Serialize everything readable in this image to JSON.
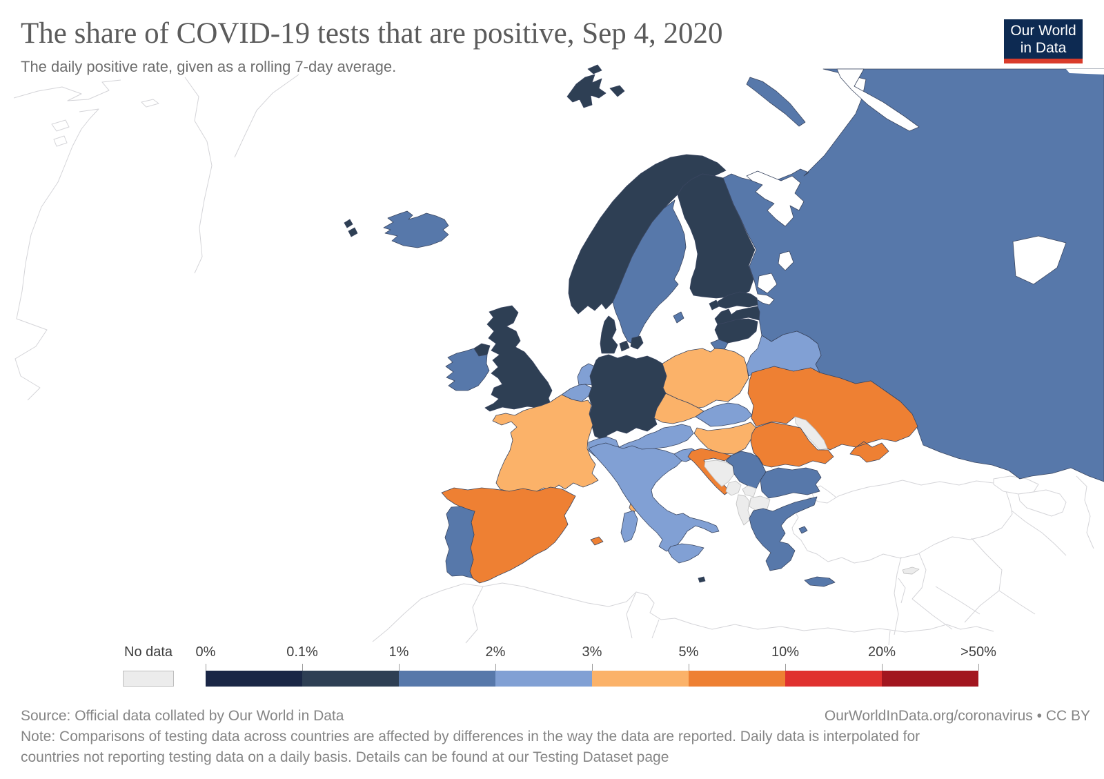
{
  "title": "The share of COVID-19 tests that are positive, Sep 4, 2020",
  "subtitle": "The daily positive rate, given as a rolling 7-day average.",
  "logo": {
    "line1": "Our World",
    "line2": "in Data",
    "bg_color": "#0d2a52",
    "bar_color": "#d93c2b"
  },
  "legend": {
    "no_data_label": "No data",
    "ticks": [
      "0%",
      "0.1%",
      "1%",
      "2%",
      "3%",
      "5%",
      "10%",
      "20%",
      ">50%"
    ],
    "bucket_order": [
      "0-0.1%",
      "0.1-1%",
      "1-2%",
      "2-3%",
      "3-5%",
      "5-10%",
      "10-20%",
      ">20%"
    ],
    "bucket_colors": {
      "0-0.1%": "#1a2746",
      "0.1-1%": "#2e3f54",
      "1-2%": "#5778aa",
      "2-3%": "#81a0d4",
      "3-5%": "#fbb269",
      "5-10%": "#ee8033",
      "10-20%": "#e0312f",
      ">20%": "#a2161f"
    },
    "no_data_color": "#ececec"
  },
  "footer": {
    "source": "Source: Official data collated by Our World in Data",
    "credit": "OurWorldInData.org/coronavirus • CC BY",
    "note_lines": [
      "Note: Comparisons of testing data across countries are affected by differences in the way the data are reported. Daily data is interpolated for",
      "countries not reporting testing data on a daily basis. Details can be found at our Testing Dataset page"
    ]
  },
  "chart_data": {
    "type": "heatmap",
    "subtype": "choropleth-map",
    "title": "The share of COVID-19 tests that are positive",
    "date": "Sep 4, 2020",
    "unit": "daily positive rate, rolling 7-day average",
    "legend_buckets": [
      "0-0.1%",
      "0.1-1%",
      "1-2%",
      "2-3%",
      "3-5%",
      "5-10%",
      "10-20%",
      ">20%"
    ],
    "countries": {
      "Iceland": "1-2%",
      "Norway": "0.1-1%",
      "Sweden": "1-2%",
      "Finland": "0.1-1%",
      "Denmark": "0.1-1%",
      "Faroe Islands": "0.1-1%",
      "Svalbard": "0.1-1%",
      "United Kingdom": "0.1-1%",
      "Ireland": "1-2%",
      "Netherlands": "2-3%",
      "Belgium": "2-3%",
      "Luxembourg": "2-3%",
      "Germany": "0.1-1%",
      "France": "3-5%",
      "Spain": "5-10%",
      "Portugal": "1-2%",
      "Italy": "2-3%",
      "Switzerland": "2-3%",
      "Austria": "2-3%",
      "Czechia": "3-5%",
      "Poland": "3-5%",
      "Slovakia": "2-3%",
      "Hungary": "3-5%",
      "Slovenia": "2-3%",
      "Croatia": "5-10%",
      "Bosnia and Herzegovina": "no data",
      "Serbia": "1-2%",
      "Montenegro": "no data",
      "Kosovo": "no data",
      "North Macedonia": "no data",
      "Albania": "no data",
      "Greece": "1-2%",
      "Bulgaria": "1-2%",
      "Romania": "5-10%",
      "Moldova": "no data",
      "Ukraine": "5-10%",
      "Belarus": "2-3%",
      "Estonia": "0.1-1%",
      "Latvia": "0.1-1%",
      "Lithuania": "0.1-1%",
      "Russia": "1-2%",
      "Malta": "0.1-1%",
      "Cyprus": "no data"
    }
  }
}
